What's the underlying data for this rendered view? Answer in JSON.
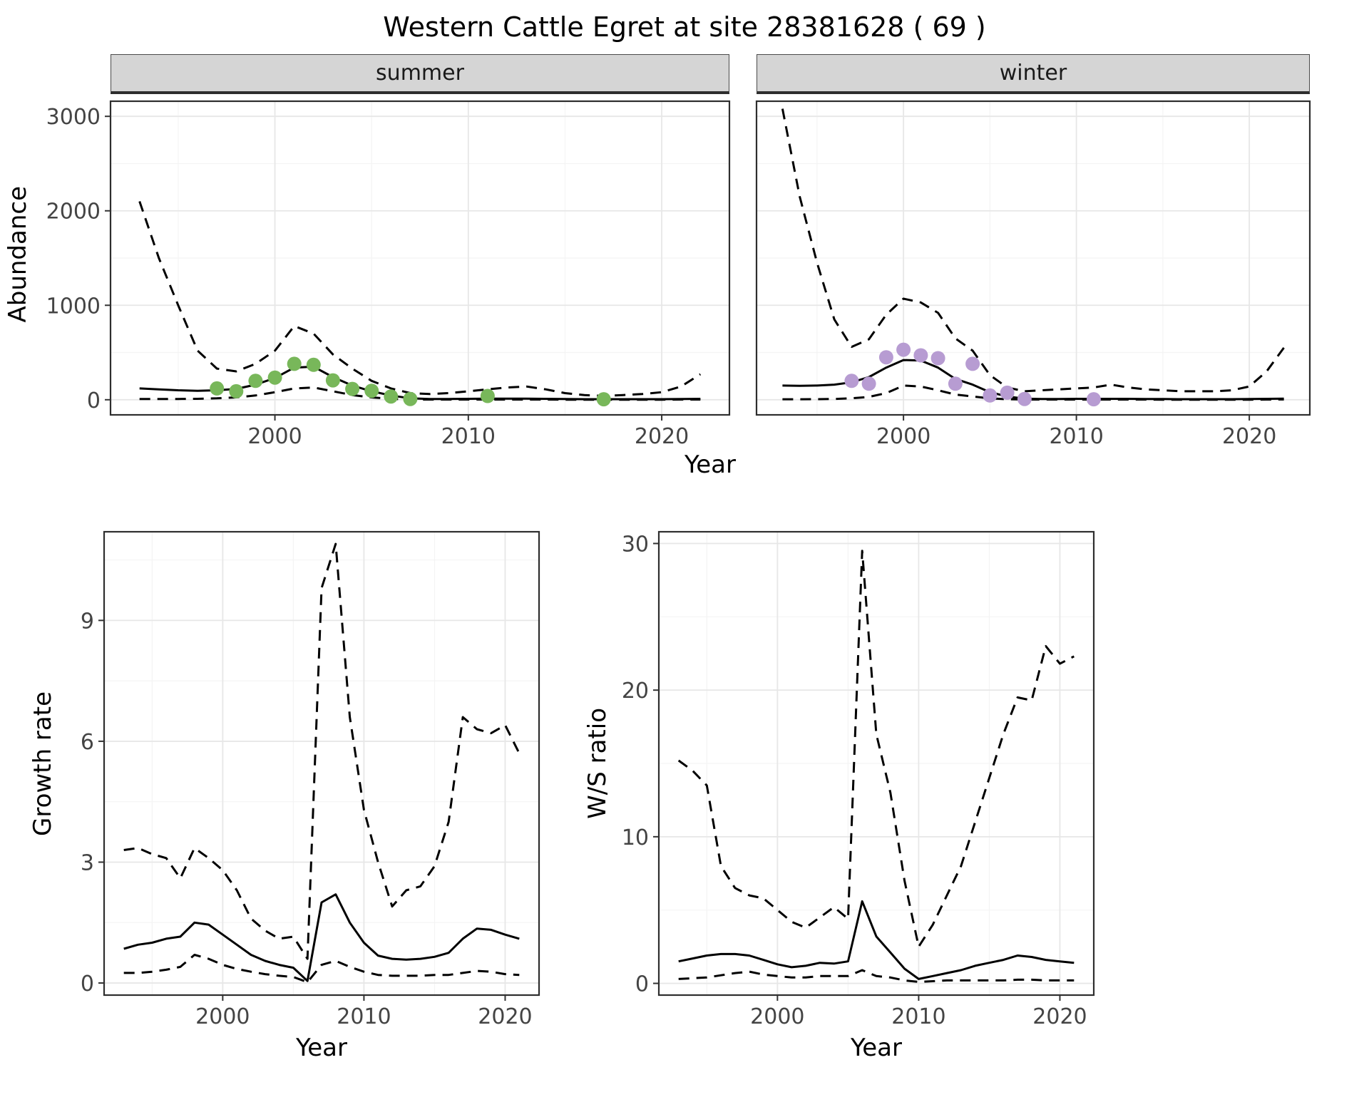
{
  "title": "Western Cattle Egret at site 28381628 ( 69 )",
  "colors": {
    "line": "#000000",
    "summer_points": "#78b75a",
    "winter_points": "#b79cd2",
    "strip_background": "#d5d5d5",
    "grid_major": "#e7e7e7",
    "grid_minor": "#f4f4f4",
    "panel_border": "#2e2e2e",
    "tick_text": "#444444"
  },
  "chart_data": [
    {
      "id": "abundance-summer",
      "type": "line",
      "facet": "summer",
      "ylabel": "Abundance",
      "xlabel": "Year",
      "xlim": [
        1991.5,
        2023.5
      ],
      "ylim": [
        -160,
        3160
      ],
      "xticks": [
        2000,
        2010,
        2020
      ],
      "yticks": [
        0,
        1000,
        2000,
        3000
      ],
      "x": [
        1993,
        1994,
        1995,
        1996,
        1997,
        1998,
        1999,
        2000,
        2001,
        2002,
        2003,
        2004,
        2005,
        2006,
        2007,
        2008,
        2009,
        2010,
        2011,
        2012,
        2013,
        2014,
        2015,
        2016,
        2017,
        2018,
        2019,
        2020,
        2021,
        2022
      ],
      "series": [
        {
          "name": "upper_ci",
          "style": "dashed",
          "values": [
            2100,
            1500,
            1000,
            520,
            330,
            300,
            380,
            520,
            780,
            700,
            480,
            330,
            200,
            120,
            70,
            60,
            70,
            90,
            110,
            130,
            140,
            110,
            70,
            50,
            40,
            50,
            60,
            80,
            140,
            270
          ]
        },
        {
          "name": "estimate",
          "style": "solid",
          "values": [
            120,
            110,
            100,
            95,
            100,
            115,
            160,
            230,
            340,
            350,
            240,
            150,
            90,
            45,
            15,
            8,
            8,
            10,
            12,
            12,
            12,
            10,
            8,
            6,
            6,
            6,
            6,
            6,
            8,
            10
          ]
        },
        {
          "name": "lower_ci",
          "style": "dashed",
          "values": [
            8,
            8,
            8,
            10,
            15,
            25,
            45,
            80,
            120,
            130,
            90,
            50,
            25,
            10,
            3,
            2,
            2,
            2,
            2,
            2,
            2,
            2,
            1,
            1,
            1,
            1,
            1,
            1,
            2,
            2
          ]
        }
      ],
      "observations": {
        "color": "#78b75a",
        "x": [
          1997,
          1998,
          1999,
          2000,
          2001,
          2002,
          2003,
          2004,
          2005,
          2006,
          2007,
          2011,
          2017
        ],
        "y": [
          120,
          90,
          200,
          235,
          380,
          370,
          205,
          115,
          95,
          35,
          8,
          40,
          5
        ]
      }
    },
    {
      "id": "abundance-winter",
      "type": "line",
      "facet": "winter",
      "ylabel": "Abundance",
      "xlabel": "Year",
      "xlim": [
        1991.5,
        2023.5
      ],
      "ylim": [
        -160,
        3160
      ],
      "xticks": [
        2000,
        2010,
        2020
      ],
      "yticks": [
        0,
        1000,
        2000,
        3000
      ],
      "x": [
        1993,
        1994,
        1995,
        1996,
        1997,
        1998,
        1999,
        2000,
        2001,
        2002,
        2003,
        2004,
        2005,
        2006,
        2007,
        2008,
        2009,
        2010,
        2011,
        2012,
        2013,
        2014,
        2015,
        2016,
        2017,
        2018,
        2019,
        2020,
        2021,
        2022
      ],
      "series": [
        {
          "name": "upper_ci",
          "style": "dashed",
          "values": [
            3080,
            2150,
            1450,
            850,
            560,
            640,
            900,
            1070,
            1030,
            920,
            650,
            520,
            260,
            130,
            90,
            100,
            110,
            120,
            130,
            160,
            130,
            110,
            100,
            90,
            90,
            90,
            100,
            140,
            300,
            550
          ]
        },
        {
          "name": "estimate",
          "style": "solid",
          "values": [
            150,
            148,
            150,
            160,
            185,
            240,
            340,
            420,
            415,
            340,
            220,
            160,
            80,
            35,
            12,
            8,
            8,
            10,
            10,
            10,
            10,
            8,
            8,
            6,
            6,
            6,
            6,
            8,
            10,
            12
          ]
        },
        {
          "name": "lower_ci",
          "style": "dashed",
          "values": [
            5,
            5,
            6,
            8,
            15,
            30,
            70,
            150,
            140,
            100,
            55,
            35,
            15,
            5,
            2,
            2,
            2,
            2,
            2,
            2,
            2,
            2,
            1,
            1,
            1,
            1,
            1,
            1,
            2,
            3
          ]
        }
      ],
      "observations": {
        "color": "#b79cd2",
        "x": [
          1997,
          1998,
          1999,
          2000,
          2001,
          2002,
          2003,
          2004,
          2005,
          2006,
          2007,
          2011
        ],
        "y": [
          200,
          170,
          450,
          530,
          470,
          440,
          170,
          380,
          45,
          75,
          8,
          5
        ]
      }
    },
    {
      "id": "growth-rate",
      "type": "line",
      "ylabel": "Growth rate",
      "xlabel": "Year",
      "xlim": [
        1991.6,
        2022.4
      ],
      "ylim": [
        -0.3,
        11.2
      ],
      "xticks": [
        2000,
        2010,
        2020
      ],
      "yticks": [
        0,
        3,
        6,
        9
      ],
      "x": [
        1993,
        1994,
        1995,
        1996,
        1997,
        1998,
        1999,
        2000,
        2001,
        2002,
        2003,
        2004,
        2005,
        2006,
        2007,
        2008,
        2009,
        2010,
        2011,
        2012,
        2013,
        2014,
        2015,
        2016,
        2017,
        2018,
        2019,
        2020,
        2021
      ],
      "series": [
        {
          "name": "upper_ci",
          "style": "dashed",
          "values": [
            3.3,
            3.35,
            3.2,
            3.1,
            2.6,
            3.35,
            3.1,
            2.8,
            2.3,
            1.6,
            1.3,
            1.1,
            1.15,
            0.6,
            9.8,
            10.9,
            6.6,
            4.3,
            3.0,
            1.9,
            2.3,
            2.4,
            2.9,
            4.0,
            6.6,
            6.3,
            6.2,
            6.4,
            5.7
          ]
        },
        {
          "name": "estimate",
          "style": "solid",
          "values": [
            0.85,
            0.95,
            1.0,
            1.1,
            1.15,
            1.5,
            1.45,
            1.2,
            0.95,
            0.7,
            0.55,
            0.45,
            0.38,
            0.05,
            2.0,
            2.2,
            1.5,
            1.0,
            0.68,
            0.6,
            0.58,
            0.6,
            0.65,
            0.75,
            1.1,
            1.35,
            1.32,
            1.2,
            1.1
          ]
        },
        {
          "name": "lower_ci",
          "style": "dashed",
          "values": [
            0.25,
            0.25,
            0.28,
            0.33,
            0.4,
            0.7,
            0.6,
            0.45,
            0.35,
            0.28,
            0.22,
            0.18,
            0.15,
            0.02,
            0.45,
            0.55,
            0.4,
            0.28,
            0.2,
            0.18,
            0.18,
            0.18,
            0.2,
            0.2,
            0.25,
            0.3,
            0.28,
            0.22,
            0.2
          ]
        }
      ]
    },
    {
      "id": "ws-ratio",
      "type": "line",
      "ylabel": "W/S ratio",
      "xlabel": "Year",
      "xlim": [
        1991.6,
        2022.4
      ],
      "ylim": [
        -0.8,
        30.8
      ],
      "xticks": [
        2000,
        2010,
        2020
      ],
      "yticks": [
        0,
        10,
        20,
        30
      ],
      "x": [
        1993,
        1994,
        1995,
        1996,
        1997,
        1998,
        1999,
        2000,
        2001,
        2002,
        2003,
        2004,
        2005,
        2006,
        2007,
        2008,
        2009,
        2010,
        2011,
        2012,
        2013,
        2014,
        2015,
        2016,
        2017,
        2018,
        2019,
        2020,
        2021
      ],
      "series": [
        {
          "name": "upper_ci",
          "style": "dashed",
          "values": [
            15.2,
            14.5,
            13.5,
            8.0,
            6.5,
            6.0,
            5.8,
            5.0,
            4.2,
            3.8,
            4.5,
            5.2,
            4.4,
            29.5,
            17.0,
            13.0,
            7.0,
            2.5,
            4.0,
            6.0,
            8.0,
            11.0,
            14.0,
            17.0,
            19.5,
            19.3,
            23.0,
            21.8,
            22.3
          ]
        },
        {
          "name": "estimate",
          "style": "solid",
          "values": [
            1.5,
            1.7,
            1.9,
            2.0,
            2.0,
            1.9,
            1.6,
            1.3,
            1.1,
            1.2,
            1.4,
            1.35,
            1.5,
            5.6,
            3.2,
            2.1,
            1.0,
            0.3,
            0.5,
            0.7,
            0.9,
            1.2,
            1.4,
            1.6,
            1.9,
            1.8,
            1.6,
            1.5,
            1.4
          ]
        },
        {
          "name": "lower_ci",
          "style": "dashed",
          "values": [
            0.3,
            0.35,
            0.4,
            0.55,
            0.7,
            0.8,
            0.6,
            0.5,
            0.4,
            0.4,
            0.5,
            0.5,
            0.5,
            0.9,
            0.5,
            0.4,
            0.2,
            0.1,
            0.15,
            0.2,
            0.2,
            0.2,
            0.2,
            0.2,
            0.25,
            0.25,
            0.2,
            0.2,
            0.2
          ]
        }
      ]
    }
  ]
}
